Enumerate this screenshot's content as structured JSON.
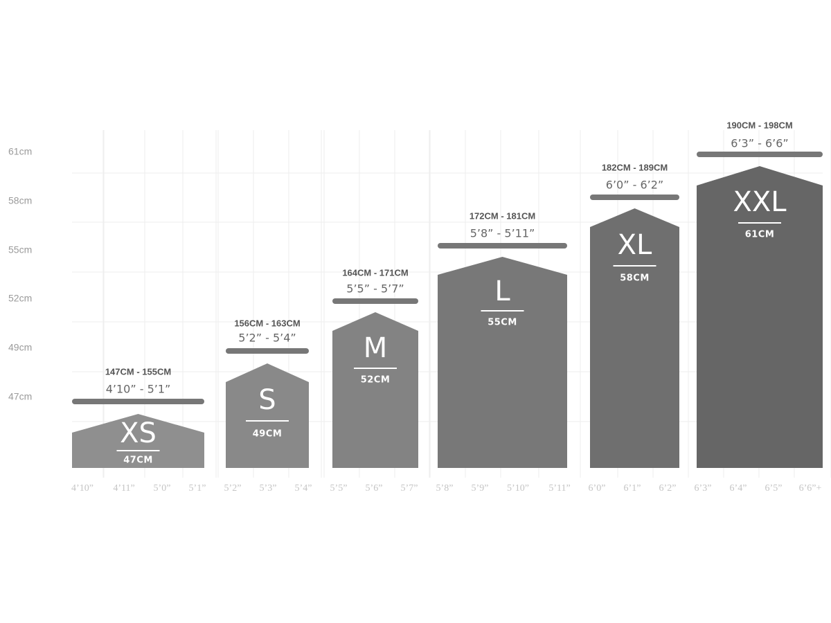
{
  "y_axis": {
    "labels": [
      "61cm",
      "58cm",
      "55cm",
      "52cm",
      "49cm",
      "47cm"
    ]
  },
  "x_axis": {
    "labels": [
      "4’10”",
      "4’11”",
      "5’0”",
      "5’1”",
      "5’2”",
      "5’3”",
      "5’4”",
      "5’5”",
      "5’6”",
      "5’7”",
      "5’8”",
      "5’9”",
      "5’10”",
      "5’11”",
      "6’0”",
      "6’1”",
      "6’2”",
      "6’3”",
      "6’4”",
      "6’5”",
      "6’6”+"
    ]
  },
  "sizes": [
    {
      "name": "XS",
      "frame": "47CM",
      "cm_range": "147CM - 155CM",
      "inch_range": "4’10” - 5’1”"
    },
    {
      "name": "S",
      "frame": "49CM",
      "cm_range": "156CM - 163CM",
      "inch_range": "5’2” - 5’4”"
    },
    {
      "name": "M",
      "frame": "52CM",
      "cm_range": "164CM - 171CM",
      "inch_range": "5’5” - 5’7”"
    },
    {
      "name": "L",
      "frame": "55CM",
      "cm_range": "172CM - 181CM",
      "inch_range": "5’8” - 5’11”"
    },
    {
      "name": "XL",
      "frame": "58CM",
      "cm_range": "182CM - 189CM",
      "inch_range": "6’0” - 6’2”"
    },
    {
      "name": "XXL",
      "frame": "61CM",
      "cm_range": "190CM - 198CM",
      "inch_range": "6’3” - 6’6”"
    }
  ]
}
